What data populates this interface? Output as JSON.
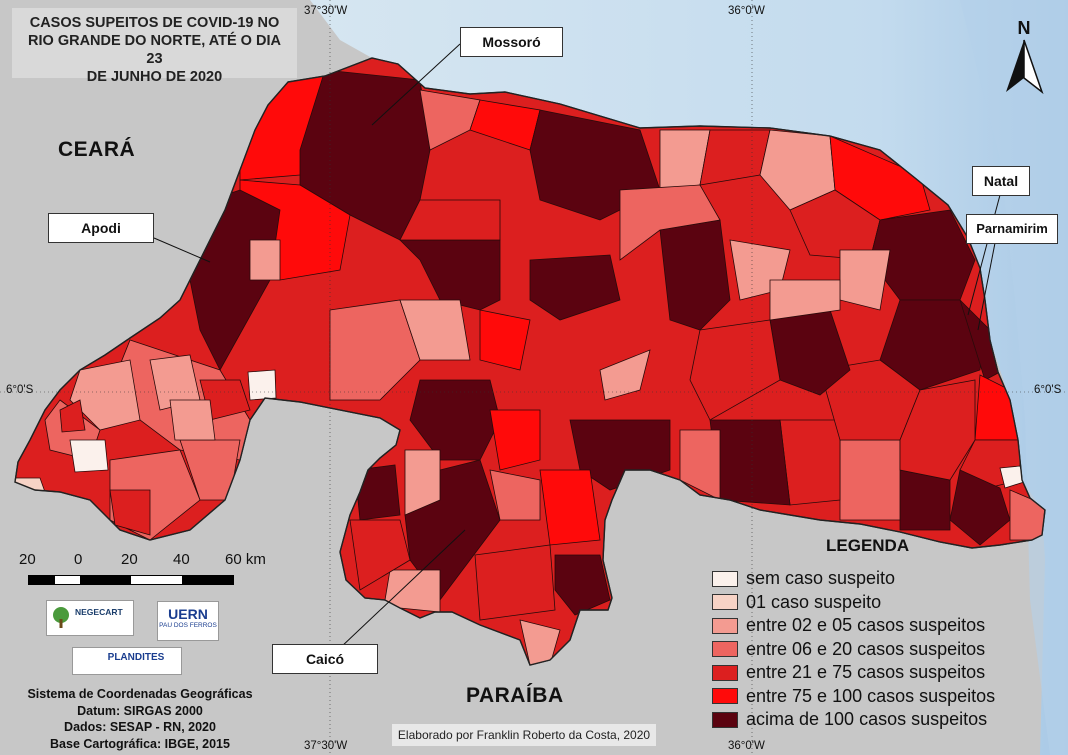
{
  "title": "CASOS SUPEITOS DE COVID-19 NO RIO GRANDE DO NORTE, ATÉ O DIA 23 DE JUNHO DE 2020",
  "title_lines": [
    "CASOS SUPEITOS DE COVID-19 NO",
    "RIO GRANDE DO NORTE, ATÉ O DIA 23",
    "DE JUNHO DE 2020"
  ],
  "neighbors": {
    "west": "CEARÁ",
    "south": "PARAÍBA"
  },
  "callouts": {
    "mossoro": "Mossoró",
    "apodi": "Apodi",
    "natal": "Natal",
    "parnamirim": "Parnamirim",
    "caico": "Caicó"
  },
  "graticule": {
    "top_left": "37°30'W",
    "top_right": "36°0'W",
    "bottom_left": "37°30'W",
    "bottom_right": "36°0'W",
    "left_lat": "6°0'S",
    "right_lat": "6°0'S"
  },
  "north_label": "N",
  "scale": {
    "labels": [
      "20",
      "0",
      "20",
      "40",
      "60 km"
    ]
  },
  "legend": {
    "title": "LEGENDA",
    "items": [
      {
        "label": "sem caso suspeito",
        "color": "#fbf1ec"
      },
      {
        "label": "01 caso suspeito",
        "color": "#f7d3c6"
      },
      {
        "label": "entre 02 e 05 casos suspeitos",
        "color": "#f39b91"
      },
      {
        "label": "entre 06 e 20 casos suspeitos",
        "color": "#ed6560"
      },
      {
        "label": "entre 21 e 75 casos suspeitos",
        "color": "#dc1f1f"
      },
      {
        "label": "entre 75 e 100 casos suspeitos",
        "color": "#ff0a0a"
      },
      {
        "label": "acima de 100 casos suspeitos",
        "color": "#5b0310"
      }
    ]
  },
  "logos": {
    "negecart": "NEGECART",
    "uern": "UERN",
    "uern_sub": "PAU DOS FERROS",
    "plandites": "PLANDITES"
  },
  "info_lines": [
    "Sistema de Coordenadas Geográficas",
    "Datum: SIRGAS 2000",
    "Dados: SESAP - RN, 2020",
    "Base Cartográfica: IBGE, 2015"
  ],
  "credit": "Elaborado por Franklin Roberto da Costa, 2020"
}
